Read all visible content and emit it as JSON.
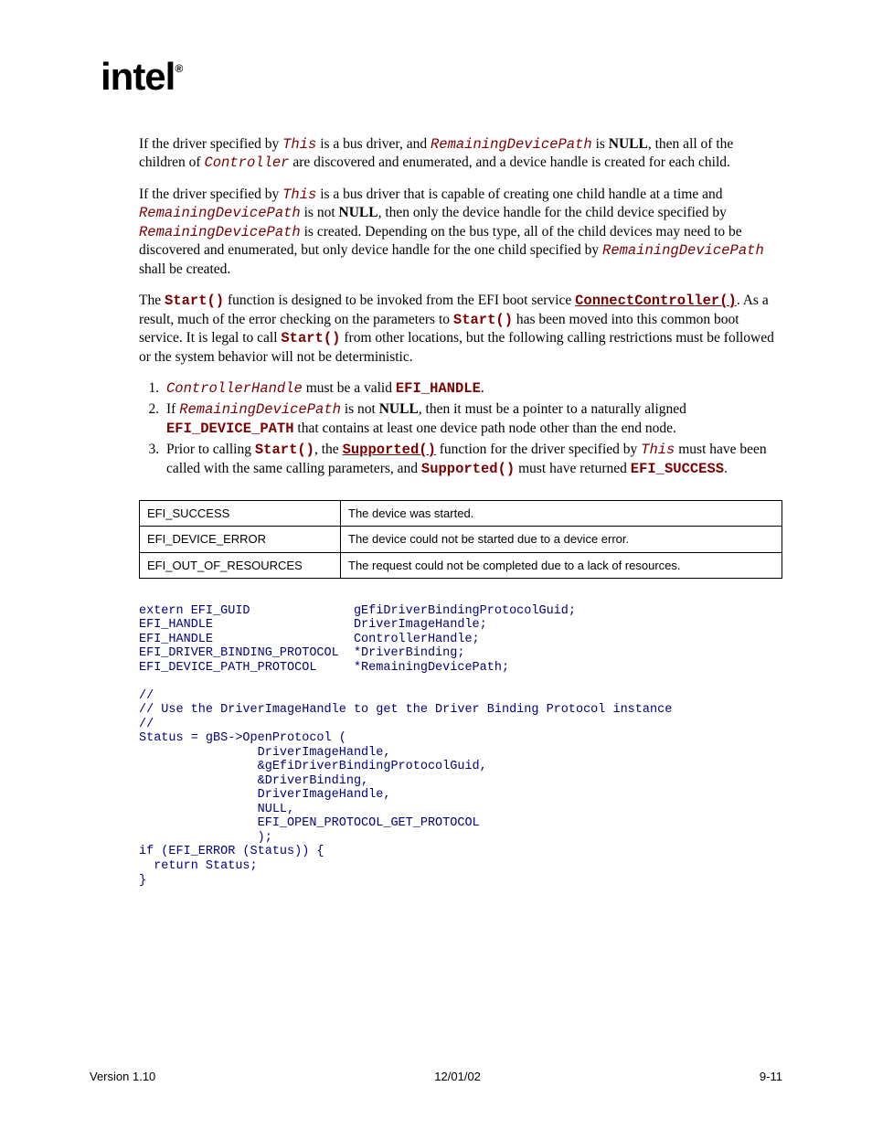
{
  "logo": {
    "text": "intel",
    "reg": "®"
  },
  "para1": {
    "t1": "If the driver specified by ",
    "this": "This",
    "t2": " is a bus driver, and ",
    "rdp": "RemainingDevicePath",
    "t3": " is ",
    "null": "NULL",
    "t4": ", then all of the children of ",
    "ctrl": "Controller",
    "t5": " are discovered and enumerated, and a device handle is created for each child."
  },
  "para2": {
    "t1": "If the driver specified by ",
    "this": "This",
    "t2": " is a bus driver that is capable of creating one child handle at a time and ",
    "rdp1": "RemainingDevicePath",
    "t3": " is not ",
    "null": "NULL",
    "t4": ", then only the device handle for the child device specified by ",
    "rdp2": "RemainingDevicePath",
    "t5": " is created.  Depending on the bus type, all of the child devices may need to be discovered and enumerated, but only device handle for the one child specified by ",
    "rdp3": "RemainingDevicePath",
    "t6": " shall be created."
  },
  "para3": {
    "t1": "The ",
    "start1": "Start()",
    "t2": " function is designed to be invoked from the EFI boot service ",
    "cc": "ConnectController()",
    "t3": ".  As a result, much of the error checking on the parameters to ",
    "start2": "Start()",
    "t4": " has been moved into this common boot service.  It is legal to call ",
    "start3": "Start()",
    "t5": " from other locations, but the following calling restrictions must be followed or the system behavior will not be deterministic."
  },
  "li1": {
    "ch": "ControllerHandle",
    "t1": " must be a valid ",
    "eh": "EFI_HANDLE",
    "t2": "."
  },
  "li2": {
    "t1": "If ",
    "rdp": "RemainingDevicePath",
    "t2": " is not ",
    "null": "NULL",
    "t3": ", then it must be a pointer to a naturally aligned ",
    "edp": "EFI_DEVICE_PATH",
    "t4": " that contains at least one device path node other than the end node."
  },
  "li3": {
    "t1": "Prior to calling ",
    "start": "Start()",
    "t2": ", the ",
    "sup1": "Supported()",
    "t3": " function for the driver specified by ",
    "this": "This",
    "t4": " must have been called with the same calling parameters, and ",
    "sup2": "Supported()",
    "t5": " must have returned ",
    "es": "EFI_SUCCESS",
    "t6": "."
  },
  "table": {
    "r1c1": "EFI_SUCCESS",
    "r1c2": "The device was started.",
    "r2c1": "EFI_DEVICE_ERROR",
    "r2c2": "The device could not be started due to a device error.",
    "r3c1": "EFI_OUT_OF_RESOURCES",
    "r3c2": "The request could not be completed due to a lack of resources."
  },
  "code": "extern EFI_GUID              gEfiDriverBindingProtocolGuid;\nEFI_HANDLE                   DriverImageHandle;\nEFI_HANDLE                   ControllerHandle;\nEFI_DRIVER_BINDING_PROTOCOL  *DriverBinding;\nEFI_DEVICE_PATH_PROTOCOL     *RemainingDevicePath;\n\n//\n// Use the DriverImageHandle to get the Driver Binding Protocol instance\n//\nStatus = gBS->OpenProtocol (\n                DriverImageHandle,\n                &gEfiDriverBindingProtocolGuid,\n                &DriverBinding,\n                DriverImageHandle,\n                NULL,\n                EFI_OPEN_PROTOCOL_GET_PROTOCOL\n                );\nif (EFI_ERROR (Status)) {\n  return Status;\n}",
  "footer": {
    "left": "Version 1.10",
    "center": "12/01/02",
    "right": "9-11"
  }
}
